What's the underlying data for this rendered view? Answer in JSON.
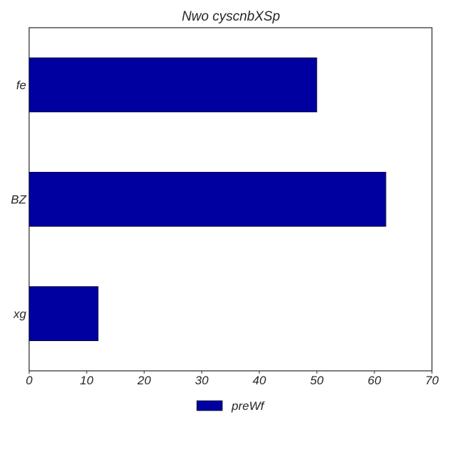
{
  "chart_data": {
    "type": "bar",
    "orientation": "horizontal",
    "title": "Nwo cyscnbXSp",
    "xlabel": "",
    "ylabel": "",
    "categories": [
      "xg",
      "BZ",
      "fe"
    ],
    "series": [
      {
        "name": "preWf",
        "values": [
          12,
          62,
          50
        ],
        "color": "#0000a0"
      }
    ],
    "xlim": [
      0,
      70
    ],
    "xticks": [
      0,
      10,
      20,
      30,
      40,
      50,
      60,
      70
    ],
    "grid": false,
    "legend_position": "bottom-center"
  }
}
